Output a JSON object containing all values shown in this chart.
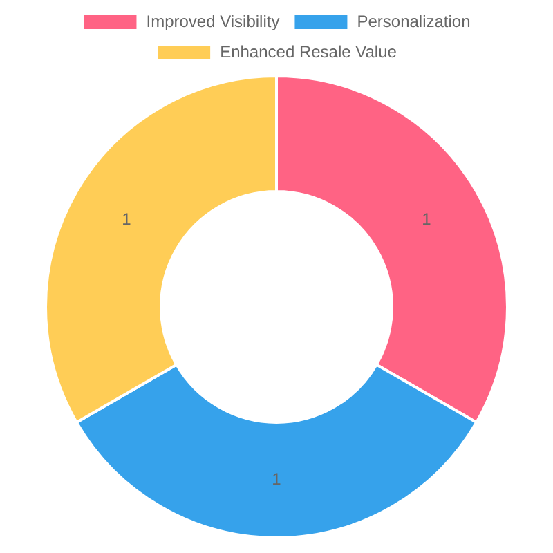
{
  "chart_data": {
    "type": "donut",
    "categories": [
      "Improved Visibility",
      "Personalization",
      "Enhanced Resale Value"
    ],
    "values": [
      1,
      1,
      1
    ],
    "colors": [
      "#ff6384",
      "#36a2eb",
      "#ffcd56"
    ],
    "legend": "top",
    "data_labels": true
  }
}
